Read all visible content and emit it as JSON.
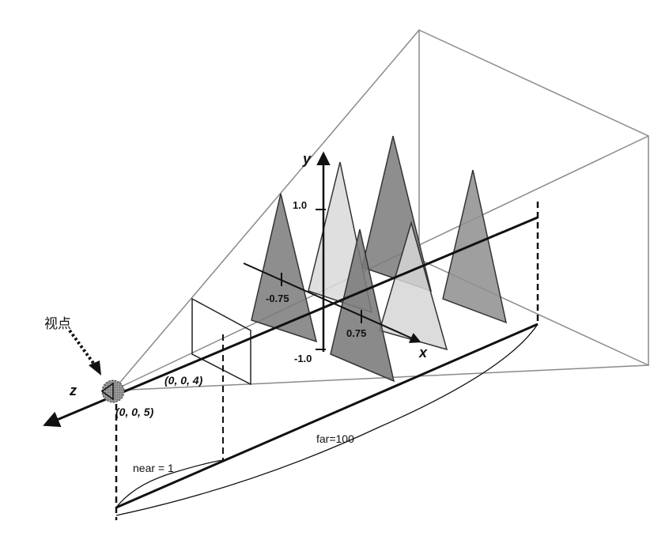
{
  "diagram": {
    "viewpoint_label": "视点",
    "axes": {
      "x": "x",
      "y": "y",
      "z": "z"
    },
    "ticks": {
      "y_pos": "1.0",
      "y_neg": "-1.0",
      "x_neg": "-0.75",
      "x_pos": "0.75"
    },
    "coords": {
      "near_point": "(0, 0, 4)",
      "eye_point": "(0, 0, 5)"
    },
    "distances": {
      "near": "near = 1",
      "far": "far=100"
    },
    "colors": {
      "triangle_dark": "#7a7a7a",
      "triangle_light": "#d6d6d6",
      "triangle_mid": "#9a9a9a",
      "frustum_line": "#8a8a8a",
      "axis": "#111111"
    }
  }
}
